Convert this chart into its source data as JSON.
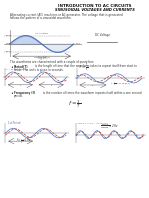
{
  "title_line1": "INTRODUCTION TO AC CIRCUITS",
  "title_line2": "SINUSOIDAL VOLTAGES AND CURRENTS",
  "body_text1": "Alternating current (AC) machines or AC generator. The voltage that is generated",
  "body_text2": "follows the pattern of a sinusoidal waveform.",
  "waveforms_text": "The waveforms are characterised with a couple of quantities:",
  "period_bold": "Period(T)",
  "period_rest": " is the length of time that the waveform takes to repeat itself from start to",
  "period_rest2": "finish. The units is given in seconds.",
  "freq_bold": "Frequency (f)",
  "freq_rest": " is the number of times the waveform repeats itself within a one second",
  "freq_rest2": "period.",
  "bg_color": "#ffffff",
  "title_color": "#111111",
  "text_color": "#333333",
  "wave_blue": "#4472c4",
  "wave_red": "#c0392b",
  "axis_color": "#666666",
  "orange_fill": "#f0a830",
  "pdf_bg": "#1a2633",
  "pdf_text": "#e05030"
}
